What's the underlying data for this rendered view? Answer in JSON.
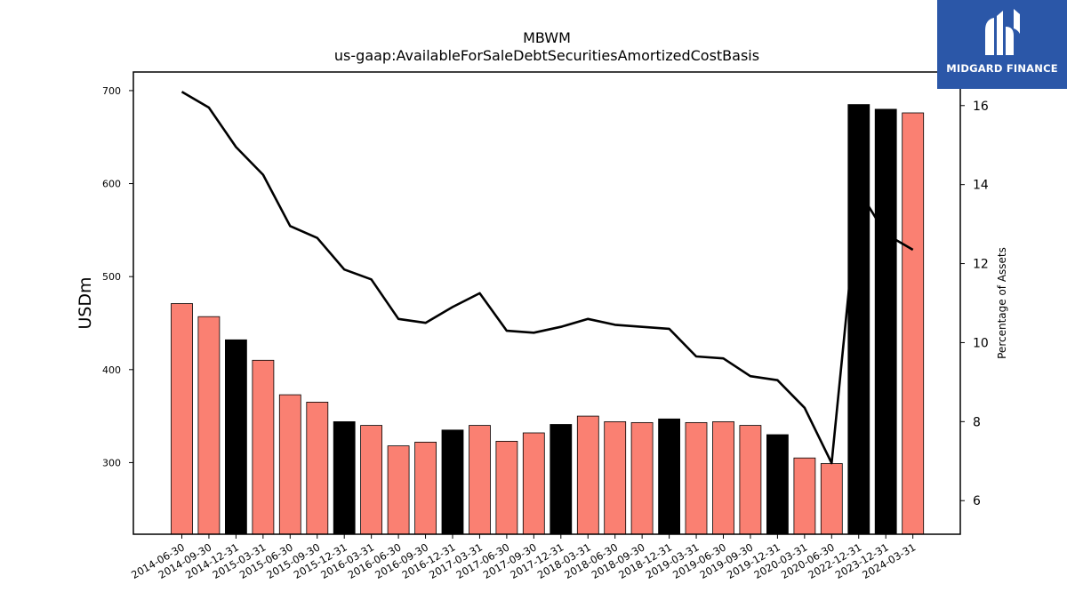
{
  "chart_data": {
    "type": "bar+line",
    "title": "MBWM",
    "subtitle": "us-gaap:AvailableForSaleDebtSecuritiesAmortizedCostBasis",
    "ylabel": "USDm",
    "y2label": "Percentage of Assets",
    "ylim": [
      223,
      720
    ],
    "y2lim": [
      5.15,
      16.85
    ],
    "yticks": [
      300,
      400,
      500,
      600,
      700
    ],
    "y2ticks": [
      6,
      8,
      10,
      12,
      14,
      16
    ],
    "categories": [
      "2014-06-30",
      "2014-09-30",
      "2014-12-31",
      "2015-03-31",
      "2015-06-30",
      "2015-09-30",
      "2015-12-31",
      "2016-03-31",
      "2016-06-30",
      "2016-09-30",
      "2016-12-31",
      "2017-03-31",
      "2017-06-30",
      "2017-09-30",
      "2017-12-31",
      "2018-03-31",
      "2018-06-30",
      "2018-09-30",
      "2018-12-31",
      "2019-03-31",
      "2019-06-30",
      "2019-09-30",
      "2019-12-31",
      "2020-03-31",
      "2020-06-30",
      "2022-12-31",
      "2023-12-31",
      "2024-03-31"
    ],
    "series": [
      {
        "kind": "bar",
        "values": [
          471,
          457,
          432,
          410,
          373,
          365,
          344,
          340,
          318,
          322,
          335,
          340,
          323,
          332,
          341,
          350,
          344,
          343,
          347,
          343,
          344,
          340,
          330,
          305,
          299,
          685,
          680,
          676
        ],
        "bar_colors": [
          "#fa8072",
          "#fa8072",
          "#000000",
          "#fa8072",
          "#fa8072",
          "#fa8072",
          "#000000",
          "#fa8072",
          "#fa8072",
          "#fa8072",
          "#000000",
          "#fa8072",
          "#fa8072",
          "#fa8072",
          "#000000",
          "#fa8072",
          "#fa8072",
          "#fa8072",
          "#000000",
          "#fa8072",
          "#fa8072",
          "#fa8072",
          "#000000",
          "#fa8072",
          "#fa8072",
          "#000000",
          "#000000",
          "#fa8072"
        ]
      },
      {
        "kind": "line",
        "axis": "right",
        "color": "#000000",
        "values": [
          16.35,
          15.95,
          14.95,
          14.25,
          12.95,
          12.65,
          11.85,
          11.6,
          10.6,
          10.5,
          10.9,
          11.25,
          10.3,
          10.25,
          10.4,
          10.6,
          10.45,
          10.4,
          10.35,
          9.65,
          9.6,
          9.15,
          9.05,
          8.35,
          6.95,
          13.85,
          12.75,
          12.35
        ]
      }
    ]
  },
  "logo": {
    "text": "MIDGARD FINANCE",
    "color": "#2b57a8"
  }
}
